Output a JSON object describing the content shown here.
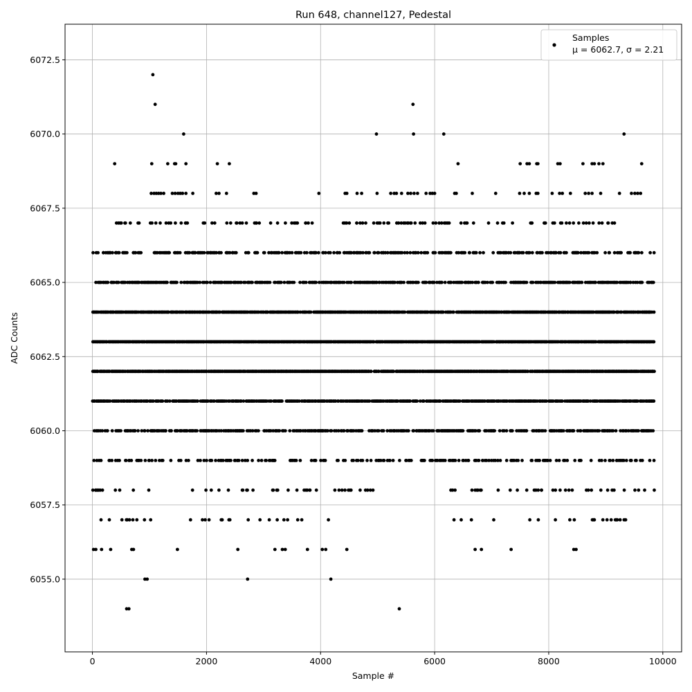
{
  "chart_data": {
    "type": "scatter",
    "title": "Run 648, channel127, Pedestal",
    "xlabel": "Sample #",
    "ylabel": "ADC Counts",
    "xlim": [
      -480,
      10330
    ],
    "ylim": [
      6052.55,
      6073.7
    ],
    "xticks": [
      0,
      2000,
      4000,
      6000,
      8000,
      10000
    ],
    "xtick_labels": [
      "0",
      "2000",
      "4000",
      "6000",
      "8000",
      "10000"
    ],
    "yticks": [
      6055.0,
      6057.5,
      6060.0,
      6062.5,
      6065.0,
      6067.5,
      6070.0,
      6072.5
    ],
    "ytick_labels": [
      "6055.0",
      "6057.5",
      "6060.0",
      "6062.5",
      "6065.0",
      "6067.5",
      "6070.0",
      "6072.5"
    ],
    "grid": true,
    "legend": {
      "placement": "top-right",
      "entries": [
        {
          "line1": "Samples",
          "line2": "μ = 6062.7, σ = 2.21"
        }
      ]
    },
    "marker_color": "#000000",
    "series": [
      {
        "name": "Samples",
        "num_samples": 9850,
        "mean": 6062.7,
        "sigma": 2.21,
        "levels": [
          {
            "y": 6061,
            "x_ranges": [
              [
                0,
                9850
              ]
            ]
          },
          {
            "y": 6062,
            "x_ranges": [
              [
                0,
                9850
              ]
            ]
          },
          {
            "y": 6063,
            "x_ranges": [
              [
                0,
                9850
              ]
            ]
          },
          {
            "y": 6064,
            "x_ranges": [
              [
                0,
                9850
              ]
            ]
          },
          {
            "y": 6060,
            "x_ranges": [
              [
                0,
                9850
              ]
            ]
          },
          {
            "y": 6065,
            "x_ranges": [
              [
                60,
                9850
              ]
            ]
          },
          {
            "y": 6066,
            "x_ranges": [
              [
                0,
                9850
              ]
            ]
          },
          {
            "y": 6059,
            "x_ranges": [
              [
                0,
                9850
              ]
            ]
          },
          {
            "y": 6058,
            "x_ranges": [
              [
                0,
                1000
              ],
              [
                1700,
                5000
              ],
              [
                6050,
                9850
              ]
            ]
          },
          {
            "y": 6067,
            "x_ranges": [
              [
                380,
                3900
              ],
              [
                4250,
                9850
              ]
            ]
          },
          {
            "y": 6057,
            "x_ranges": [
              [
                0,
                1150
              ],
              [
                1700,
                4400
              ],
              [
                6300,
                9450
              ]
            ]
          }
        ],
        "points": [
          [
            1060,
            6072
          ],
          [
            1100,
            6071
          ],
          [
            5620,
            6071
          ],
          [
            1600,
            6070
          ],
          [
            4980,
            6070
          ],
          [
            5630,
            6070
          ],
          [
            6160,
            6070
          ],
          [
            9320,
            6070
          ],
          [
            390,
            6069
          ],
          [
            1040,
            6069
          ],
          [
            1320,
            6069
          ],
          [
            1440,
            6069
          ],
          [
            1460,
            6069
          ],
          [
            1640,
            6069
          ],
          [
            2190,
            6069
          ],
          [
            2400,
            6069
          ],
          [
            6410,
            6069
          ],
          [
            7500,
            6069
          ],
          [
            7620,
            6069
          ],
          [
            7660,
            6069
          ],
          [
            7790,
            6069
          ],
          [
            7810,
            6069
          ],
          [
            8160,
            6069
          ],
          [
            8200,
            6069
          ],
          [
            8600,
            6069
          ],
          [
            8760,
            6069
          ],
          [
            8800,
            6069
          ],
          [
            8880,
            6069
          ],
          [
            8950,
            6069
          ],
          [
            9630,
            6069
          ],
          [
            1030,
            6068
          ],
          [
            1080,
            6068
          ],
          [
            1120,
            6068
          ],
          [
            1160,
            6068
          ],
          [
            1200,
            6068
          ],
          [
            1250,
            6068
          ],
          [
            1400,
            6068
          ],
          [
            1450,
            6068
          ],
          [
            1500,
            6068
          ],
          [
            1540,
            6068
          ],
          [
            1580,
            6068
          ],
          [
            1640,
            6068
          ],
          [
            1760,
            6068
          ],
          [
            2170,
            6068
          ],
          [
            2220,
            6068
          ],
          [
            2350,
            6068
          ],
          [
            2830,
            6068
          ],
          [
            2870,
            6068
          ],
          [
            3970,
            6068
          ],
          [
            4430,
            6068
          ],
          [
            4460,
            6068
          ],
          [
            4640,
            6068
          ],
          [
            4720,
            6068
          ],
          [
            4990,
            6068
          ],
          [
            5230,
            6068
          ],
          [
            5290,
            6068
          ],
          [
            5330,
            6068
          ],
          [
            5420,
            6068
          ],
          [
            5530,
            6068
          ],
          [
            5580,
            6068
          ],
          [
            5640,
            6068
          ],
          [
            5700,
            6068
          ],
          [
            5850,
            6068
          ],
          [
            5920,
            6068
          ],
          [
            5960,
            6068
          ],
          [
            6000,
            6068
          ],
          [
            6350,
            6068
          ],
          [
            6380,
            6068
          ],
          [
            6660,
            6068
          ],
          [
            7070,
            6068
          ],
          [
            7490,
            6068
          ],
          [
            7570,
            6068
          ],
          [
            7660,
            6068
          ],
          [
            7780,
            6068
          ],
          [
            7810,
            6068
          ],
          [
            8060,
            6068
          ],
          [
            8190,
            6068
          ],
          [
            8240,
            6068
          ],
          [
            8380,
            6068
          ],
          [
            8640,
            6068
          ],
          [
            8700,
            6068
          ],
          [
            8760,
            6068
          ],
          [
            8910,
            6068
          ],
          [
            9240,
            6068
          ],
          [
            9450,
            6068
          ],
          [
            9510,
            6068
          ],
          [
            9560,
            6068
          ],
          [
            9610,
            6068
          ],
          [
            920,
            6055
          ],
          [
            960,
            6055
          ],
          [
            2720,
            6055
          ],
          [
            4180,
            6055
          ],
          [
            600,
            6054
          ],
          [
            640,
            6054
          ],
          [
            5380,
            6054
          ],
          [
            20,
            6056
          ],
          [
            60,
            6056
          ],
          [
            160,
            6056
          ],
          [
            320,
            6056
          ],
          [
            690,
            6056
          ],
          [
            720,
            6056
          ],
          [
            1490,
            6056
          ],
          [
            2550,
            6056
          ],
          [
            3200,
            6056
          ],
          [
            3330,
            6056
          ],
          [
            3380,
            6056
          ],
          [
            3770,
            6056
          ],
          [
            4030,
            6056
          ],
          [
            4090,
            6056
          ],
          [
            4460,
            6056
          ],
          [
            6710,
            6056
          ],
          [
            6820,
            6056
          ],
          [
            7340,
            6056
          ],
          [
            8440,
            6056
          ],
          [
            8480,
            6056
          ]
        ]
      }
    ]
  }
}
